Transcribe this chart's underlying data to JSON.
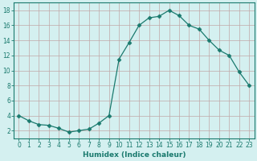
{
  "x": [
    0,
    1,
    2,
    3,
    4,
    5,
    6,
    7,
    8,
    9,
    10,
    11,
    12,
    13,
    14,
    15,
    16,
    17,
    18,
    19,
    20,
    21,
    22,
    23
  ],
  "y": [
    4.0,
    3.3,
    2.8,
    2.7,
    2.3,
    1.8,
    2.0,
    2.2,
    3.0,
    4.0,
    11.5,
    13.7,
    16.0,
    17.0,
    17.2,
    18.0,
    17.3,
    16.0,
    15.5,
    14.0,
    12.7,
    12.0,
    9.8,
    8.0
  ],
  "line_color": "#1a7a6e",
  "marker": "D",
  "marker_size": 2.5,
  "bg_color": "#d4f0f0",
  "grid_color_major": "#c0a8a8",
  "grid_color_minor": "#ddc8c8",
  "xlabel": "Humidex (Indice chaleur)",
  "xlim": [
    -0.5,
    23.5
  ],
  "ylim": [
    1,
    19
  ],
  "yticks": [
    2,
    4,
    6,
    8,
    10,
    12,
    14,
    16,
    18
  ],
  "xticks": [
    0,
    1,
    2,
    3,
    4,
    5,
    6,
    7,
    8,
    9,
    10,
    11,
    12,
    13,
    14,
    15,
    16,
    17,
    18,
    19,
    20,
    21,
    22,
    23
  ],
  "label_fontsize": 6.5,
  "tick_fontsize": 5.5
}
